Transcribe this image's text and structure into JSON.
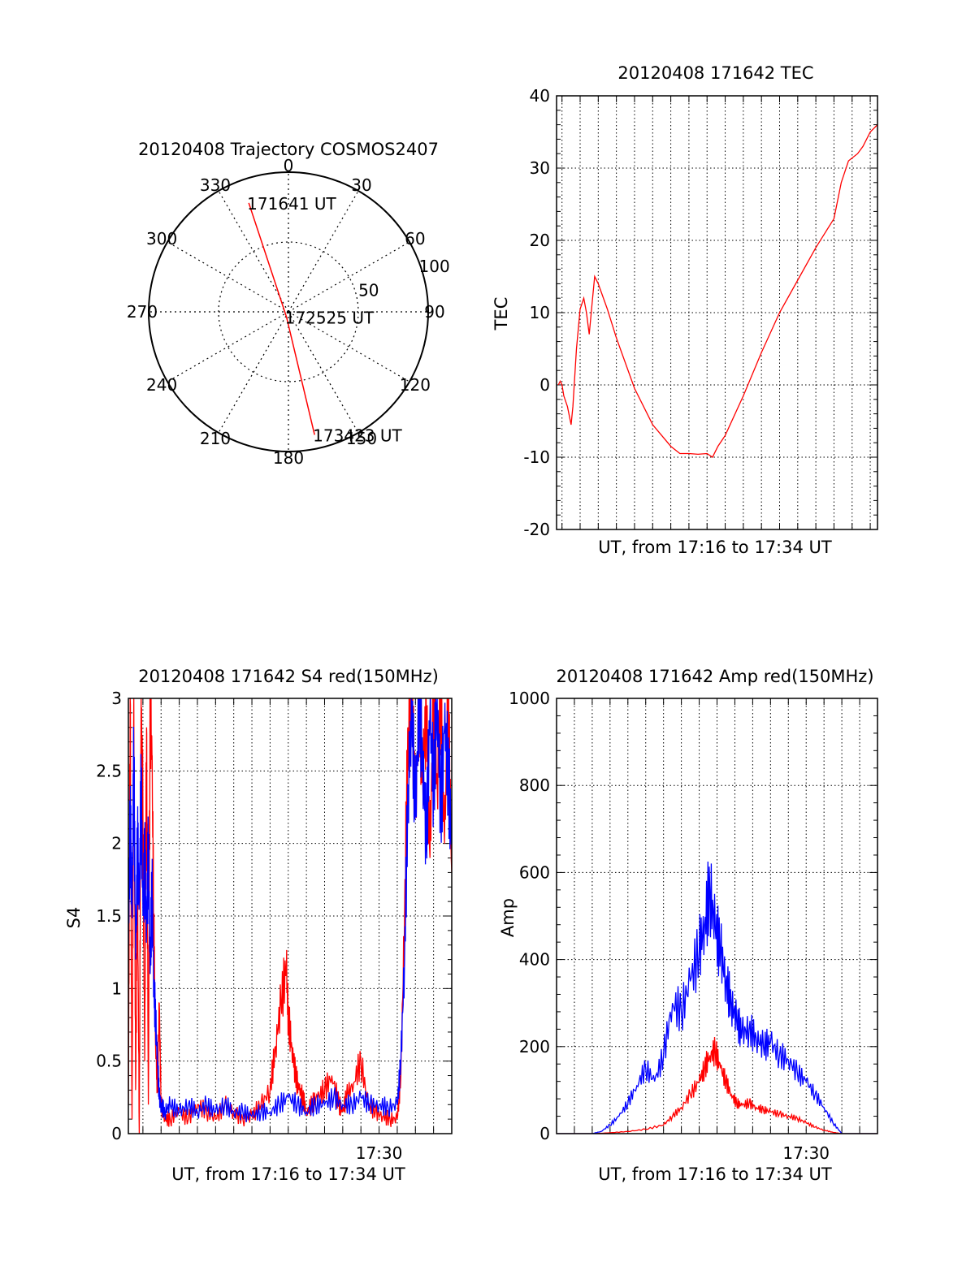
{
  "chart_data": [
    {
      "id": "trajectory",
      "type": "polar",
      "title": "20120408 Trajectory COSMOS2407",
      "azimuth_ticks": [
        0,
        30,
        60,
        90,
        120,
        150,
        180,
        210,
        240,
        270,
        300,
        330
      ],
      "radial_ticks": [
        {
          "value": 50,
          "label": "50"
        },
        {
          "value": 100,
          "label": "100"
        }
      ],
      "radial_max": 100,
      "track": {
        "color": "#ff0000",
        "points": [
          {
            "az": 340,
            "r": 83
          },
          {
            "az": 200,
            "r": 4
          },
          {
            "az": 168,
            "r": 90
          }
        ]
      },
      "annotations": [
        {
          "text": "171641 UT",
          "az": 340,
          "r": 83
        },
        {
          "text": "172525 UT",
          "az": 200,
          "r": 4
        },
        {
          "text": "173423 UT",
          "az": 168,
          "r": 90
        }
      ]
    },
    {
      "id": "tec",
      "type": "line",
      "title": "20120408 171642 TEC",
      "xlabel": "UT, from 17:16 to 17:34 UT",
      "ylabel": "TEC",
      "ylim": [
        -20,
        40
      ],
      "yticks": [
        -20,
        -10,
        0,
        10,
        20,
        30,
        40
      ],
      "xlim_min": [
        16.7,
        34.4
      ],
      "x_gridlines_min": [
        17,
        18,
        19,
        20,
        21,
        22,
        23,
        24,
        25,
        26,
        27,
        28,
        29,
        30,
        31,
        32,
        33,
        34
      ],
      "x_ticklabels": [],
      "grid": true,
      "series": [
        {
          "color": "#ff0000",
          "x": [
            16.8,
            16.9,
            17.0,
            17.1,
            17.3,
            17.5,
            17.6,
            17.8,
            18.0,
            18.2,
            18.35,
            18.5,
            18.65,
            18.8,
            19.0,
            19.5,
            20.0,
            21.0,
            22.0,
            23.0,
            23.5,
            24.0,
            24.5,
            25.0,
            25.3,
            25.6,
            26.0,
            27.0,
            28.0,
            29.0,
            30.0,
            31.0,
            32.0,
            32.4,
            32.8,
            33.3,
            33.6,
            34.0,
            34.4
          ],
          "y": [
            0,
            0.5,
            0,
            -1.5,
            -3,
            -5.5,
            -3,
            5,
            10.5,
            12,
            10,
            7,
            11,
            15,
            14,
            10.5,
            6.5,
            -0.5,
            -5.5,
            -8.5,
            -9.5,
            -9.5,
            -9.6,
            -9.5,
            -10,
            -8.5,
            -7,
            -1.5,
            4.5,
            10,
            14.5,
            19,
            23,
            28,
            31,
            32,
            33,
            35,
            36
          ]
        }
      ]
    },
    {
      "id": "s4",
      "type": "line",
      "title": "20120408 171642 S4 red(150MHz)",
      "xlabel": "UT, from 17:16 to 17:34 UT",
      "ylabel": "S4",
      "ylim": [
        0,
        3
      ],
      "yticks": [
        0,
        0.5,
        1,
        1.5,
        2,
        2.5,
        3
      ],
      "ytick_labels": [
        "0",
        "0.5",
        "1",
        "1.5",
        "2",
        "2.5",
        "3"
      ],
      "xlim_min": [
        16.2,
        34.0
      ],
      "x_gridlines_min": [
        17,
        18,
        19,
        20,
        21,
        22,
        23,
        24,
        25,
        26,
        27,
        28,
        29,
        30,
        31,
        32,
        33
      ],
      "x_ticklabels": [
        {
          "x": 30,
          "label": "17:30"
        }
      ],
      "grid": true,
      "series": [
        {
          "color": "#ff0000",
          "x": [
            16.2,
            16.3,
            16.4,
            16.5,
            16.6,
            16.7,
            16.8,
            16.9,
            17.0,
            17.1,
            17.2,
            17.3,
            17.4,
            17.5,
            17.6,
            17.7,
            17.8,
            17.9,
            18.0,
            18.2,
            18.5,
            19.0,
            19.5,
            20.0,
            20.5,
            21.0,
            21.5,
            22.0,
            22.5,
            23.0,
            23.5,
            24.0,
            24.3,
            24.6,
            24.9,
            25.0,
            25.2,
            25.4,
            25.6,
            25.8,
            26.0,
            26.3,
            26.6,
            27.0,
            27.4,
            27.8,
            28.0,
            28.2,
            28.6,
            29.0,
            29.4,
            29.8,
            30.2,
            30.6,
            31.0,
            31.2,
            31.4,
            31.6,
            31.8,
            32.0,
            32.2,
            32.4,
            32.6,
            32.8,
            33.0,
            33.2,
            33.4,
            33.6,
            33.8,
            34.0
          ],
          "y": [
            0.2,
            3.0,
            0.1,
            3.0,
            0.3,
            1.8,
            0.0,
            3.0,
            2.2,
            0.5,
            2.8,
            0.2,
            3.0,
            2.6,
            1.4,
            0.6,
            0.3,
            0.9,
            0.2,
            0.1,
            0.1,
            0.15,
            0.1,
            0.2,
            0.15,
            0.1,
            0.2,
            0.15,
            0.1,
            0.12,
            0.2,
            0.3,
            0.6,
            0.9,
            1.15,
            0.8,
            0.6,
            0.4,
            0.3,
            0.25,
            0.15,
            0.2,
            0.25,
            0.3,
            0.4,
            0.2,
            0.15,
            0.25,
            0.35,
            0.5,
            0.2,
            0.15,
            0.12,
            0.1,
            0.1,
            0.4,
            1.5,
            2.8,
            3.0,
            2.2,
            3.0,
            2.5,
            2.9,
            1.9,
            3.0,
            2.4,
            3.0,
            2.0,
            3.0,
            1.8
          ]
        },
        {
          "color": "#0000ff",
          "x": [
            16.2,
            16.3,
            16.4,
            16.5,
            16.6,
            16.7,
            16.8,
            16.9,
            17.0,
            17.1,
            17.2,
            17.3,
            17.4,
            17.5,
            17.6,
            17.7,
            17.8,
            17.9,
            18.0,
            18.2,
            18.5,
            19.0,
            19.5,
            20.0,
            20.5,
            21.0,
            21.5,
            22.0,
            22.5,
            23.0,
            23.5,
            24.0,
            24.5,
            25.0,
            25.5,
            26.0,
            26.5,
            27.0,
            27.5,
            28.0,
            28.5,
            29.0,
            29.5,
            30.0,
            30.5,
            31.0,
            31.2,
            31.4,
            31.6,
            31.8,
            32.0,
            32.2,
            32.4,
            32.6,
            32.8,
            33.0,
            33.2,
            33.4,
            33.6,
            33.8,
            34.0
          ],
          "y": [
            1.3,
            2.2,
            1.5,
            2.6,
            1.2,
            2.0,
            1.6,
            2.4,
            1.5,
            1.9,
            1.4,
            2.0,
            1.1,
            1.7,
            1.0,
            0.8,
            0.5,
            0.25,
            0.2,
            0.15,
            0.2,
            0.15,
            0.2,
            0.15,
            0.2,
            0.15,
            0.2,
            0.15,
            0.15,
            0.12,
            0.15,
            0.15,
            0.2,
            0.25,
            0.2,
            0.15,
            0.2,
            0.2,
            0.25,
            0.2,
            0.2,
            0.25,
            0.2,
            0.2,
            0.18,
            0.2,
            0.5,
            1.2,
            2.4,
            2.9,
            2.2,
            3.0,
            2.6,
            2.0,
            2.9,
            2.4,
            3.0,
            2.2,
            2.8,
            2.5,
            2.0
          ]
        }
      ]
    },
    {
      "id": "amp",
      "type": "line",
      "title": "20120408 171642 Amp red(150MHz)",
      "xlabel": "UT, from 17:16 to 17:34 UT",
      "ylabel": "Amp",
      "ylim": [
        0,
        1000
      ],
      "yticks": [
        0,
        200,
        400,
        600,
        800,
        1000
      ],
      "xlim_min": [
        16.0,
        34.0
      ],
      "x_gridlines_min": [
        17,
        18,
        19,
        20,
        21,
        22,
        23,
        24,
        25,
        26,
        27,
        28,
        29,
        30,
        31,
        32,
        33
      ],
      "x_ticklabels": [
        {
          "x": 30,
          "label": "17:30"
        }
      ],
      "grid": true,
      "series": [
        {
          "color": "#ff0000",
          "x": [
            16.0,
            18.0,
            19.0,
            20.0,
            21.0,
            22.0,
            22.5,
            23.0,
            23.5,
            24.0,
            24.3,
            24.6,
            24.9,
            25.2,
            25.5,
            25.8,
            26.1,
            26.4,
            26.8,
            27.2,
            27.6,
            28.0,
            28.5,
            29.0,
            29.5,
            30.0,
            30.5,
            31.0,
            31.5,
            32.0,
            34.0
          ],
          "y": [
            0,
            0,
            2,
            5,
            10,
            20,
            40,
            60,
            90,
            120,
            150,
            180,
            190,
            150,
            120,
            90,
            70,
            65,
            70,
            60,
            55,
            50,
            45,
            40,
            35,
            25,
            15,
            8,
            3,
            0,
            0
          ]
        },
        {
          "color": "#0000ff",
          "x": [
            16.0,
            18.0,
            18.5,
            19.0,
            19.5,
            20.0,
            20.5,
            21.0,
            21.5,
            22.0,
            22.5,
            23.0,
            23.5,
            24.0,
            24.3,
            24.6,
            24.9,
            25.2,
            25.5,
            25.8,
            26.1,
            26.4,
            26.8,
            27.2,
            27.6,
            28.0,
            28.5,
            29.0,
            29.5,
            30.0,
            30.5,
            31.0,
            31.5,
            32.0,
            34.0
          ],
          "y": [
            0,
            0,
            5,
            20,
            40,
            70,
            110,
            150,
            120,
            180,
            300,
            280,
            350,
            420,
            480,
            560,
            470,
            420,
            350,
            300,
            260,
            230,
            240,
            220,
            200,
            210,
            180,
            170,
            140,
            120,
            90,
            60,
            25,
            0,
            0
          ]
        }
      ]
    }
  ]
}
